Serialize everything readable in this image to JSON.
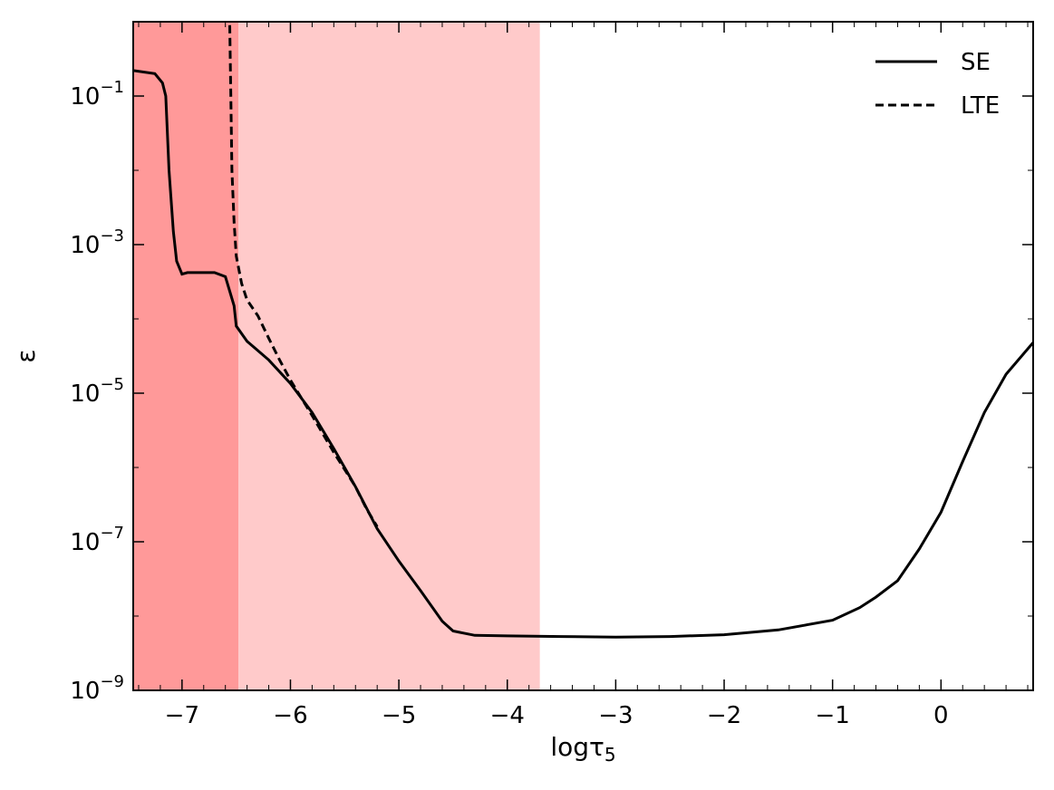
{
  "chart_data": {
    "type": "line",
    "title": "",
    "xlabel": "logτ",
    "xlabel_sub": "5",
    "ylabel": "ε",
    "xlim": [
      -7.45,
      0.85
    ],
    "ylim": [
      1e-09,
      1.0
    ],
    "yscale": "log",
    "grid": false,
    "legend_position": "top-right",
    "x_ticks": [
      {
        "value": -7,
        "label": "−7"
      },
      {
        "value": -6,
        "label": "−6"
      },
      {
        "value": -5,
        "label": "−5"
      },
      {
        "value": -4,
        "label": "−4"
      },
      {
        "value": -3,
        "label": "−3"
      },
      {
        "value": -2,
        "label": "−2"
      },
      {
        "value": -1,
        "label": "−1"
      },
      {
        "value": 0,
        "label": "0"
      }
    ],
    "y_ticks": [
      {
        "value": 1e-09,
        "base": "10",
        "exp": "−9"
      },
      {
        "value": 1e-07,
        "base": "10",
        "exp": "−7"
      },
      {
        "value": 1e-05,
        "base": "10",
        "exp": "−5"
      },
      {
        "value": 0.001,
        "base": "10",
        "exp": "−3"
      },
      {
        "value": 0.1,
        "base": "10",
        "exp": "−1"
      }
    ],
    "shaded_regions": [
      {
        "x_start": -7.45,
        "x_end": -6.48,
        "color": "#ff9999"
      },
      {
        "x_start": -6.48,
        "x_end": -3.7,
        "color": "#ffcaca"
      }
    ],
    "series": [
      {
        "name": "SE",
        "style": "solid",
        "color": "#000000",
        "points": [
          [
            -7.45,
            0.22
          ],
          [
            -7.25,
            0.2
          ],
          [
            -7.18,
            0.15
          ],
          [
            -7.15,
            0.1
          ],
          [
            -7.12,
            0.01
          ],
          [
            -7.08,
            0.0015
          ],
          [
            -7.05,
            0.0006
          ],
          [
            -7.0,
            0.0004
          ],
          [
            -6.95,
            0.00042
          ],
          [
            -6.8,
            0.00042
          ],
          [
            -6.7,
            0.00042
          ],
          [
            -6.6,
            0.00037
          ],
          [
            -6.52,
            0.00015
          ],
          [
            -6.5,
            8e-05
          ],
          [
            -6.4,
            5e-05
          ],
          [
            -6.2,
            2.8e-05
          ],
          [
            -6.0,
            1.35e-05
          ],
          [
            -5.8,
            5.5e-06
          ],
          [
            -5.6,
            1.8e-06
          ],
          [
            -5.4,
            5.5e-07
          ],
          [
            -5.2,
            1.5e-07
          ],
          [
            -5.0,
            5.5e-08
          ],
          [
            -4.8,
            2.2e-08
          ],
          [
            -4.6,
            8.5e-09
          ],
          [
            -4.5,
            6.3e-09
          ],
          [
            -4.3,
            5.5e-09
          ],
          [
            -4.0,
            5.4e-09
          ],
          [
            -3.5,
            5.3e-09
          ],
          [
            -3.0,
            5.2e-09
          ],
          [
            -2.5,
            5.3e-09
          ],
          [
            -2.0,
            5.6e-09
          ],
          [
            -1.5,
            6.5e-09
          ],
          [
            -1.0,
            8.8e-09
          ],
          [
            -0.75,
            1.3e-08
          ],
          [
            -0.6,
            1.8e-08
          ],
          [
            -0.4,
            3e-08
          ],
          [
            -0.2,
            8e-08
          ],
          [
            0.0,
            2.5e-07
          ],
          [
            0.2,
            1.2e-06
          ],
          [
            0.4,
            5.5e-06
          ],
          [
            0.6,
            1.8e-05
          ],
          [
            0.85,
            4.8e-05
          ]
        ]
      },
      {
        "name": "LTE",
        "style": "dashed",
        "color": "#000000",
        "points": [
          [
            -6.56,
            0.9
          ],
          [
            -6.55,
            0.1
          ],
          [
            -6.54,
            0.01
          ],
          [
            -6.52,
            0.002
          ],
          [
            -6.5,
            0.0007
          ],
          [
            -6.45,
            0.0003
          ],
          [
            -6.4,
            0.00018
          ],
          [
            -6.3,
            0.00011
          ],
          [
            -6.2,
            5.5e-05
          ],
          [
            -6.1,
            2.8e-05
          ],
          [
            -6.0,
            1.5e-05
          ],
          [
            -5.8,
            5e-06
          ],
          [
            -5.6,
            1.6e-06
          ],
          [
            -5.4,
            5.5e-07
          ],
          [
            -5.3,
            2.8e-07
          ],
          [
            -5.2,
            1.6e-07
          ]
        ]
      }
    ]
  }
}
